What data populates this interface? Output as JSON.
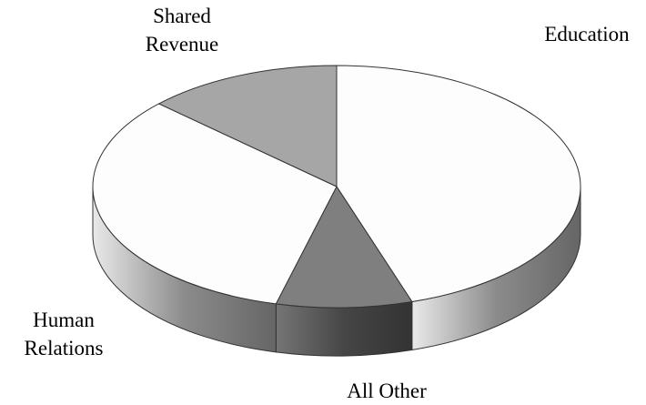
{
  "chart_data": {
    "type": "pie3d",
    "categories": [
      "Education",
      "All Other",
      "Human Relations",
      "Shared Revenue"
    ],
    "values": [
      45,
      9,
      33,
      13
    ],
    "colors": [
      "#fdfdfd",
      "#7f7f7f",
      "#fdfdfd",
      "#a6a6a6"
    ]
  }
}
